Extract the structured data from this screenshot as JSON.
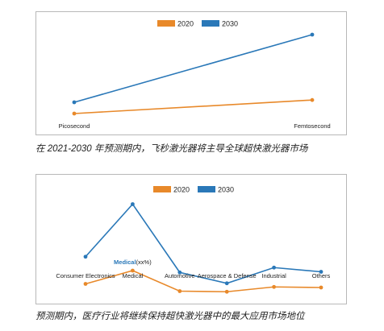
{
  "chart_data": [
    {
      "type": "line",
      "title": "",
      "xlabel": "",
      "ylabel": "",
      "categories": [
        "Picosecond",
        "Femtosecond"
      ],
      "series": [
        {
          "name": "2020",
          "color": "#e8892a",
          "values": [
            1.0,
            2.2
          ]
        },
        {
          "name": "2030",
          "color": "#2a78b8",
          "values": [
            2.0,
            8.0
          ]
        }
      ],
      "ylim": [
        0,
        9
      ],
      "legend": "top-center",
      "grid": false,
      "caption": "在 2021-2030 年预测期内，飞秒激光器将主导全球超快激光器市场"
    },
    {
      "type": "line",
      "title": "",
      "xlabel": "",
      "ylabel": "",
      "categories": [
        "Consumer Electronics",
        "Medical",
        "Automotive",
        "Aerospace & Defense",
        "Industrial",
        "Others"
      ],
      "series": [
        {
          "name": "2020",
          "color": "#e8892a",
          "values": [
            1.8,
            4.0,
            0.6,
            0.5,
            1.3,
            1.2
          ]
        },
        {
          "name": "2030",
          "color": "#2a78b8",
          "values": [
            6.3,
            15.0,
            3.7,
            1.9,
            4.5,
            3.8
          ]
        }
      ],
      "annotation": {
        "label": "Medical",
        "suffix": "(xx%)",
        "color": "#2a78b8"
      },
      "ylim": [
        0,
        16
      ],
      "legend": "top-center",
      "grid": false,
      "caption": "预测期内，医疗行业将继续保持超快激光器中的最大应用市场地位"
    }
  ]
}
